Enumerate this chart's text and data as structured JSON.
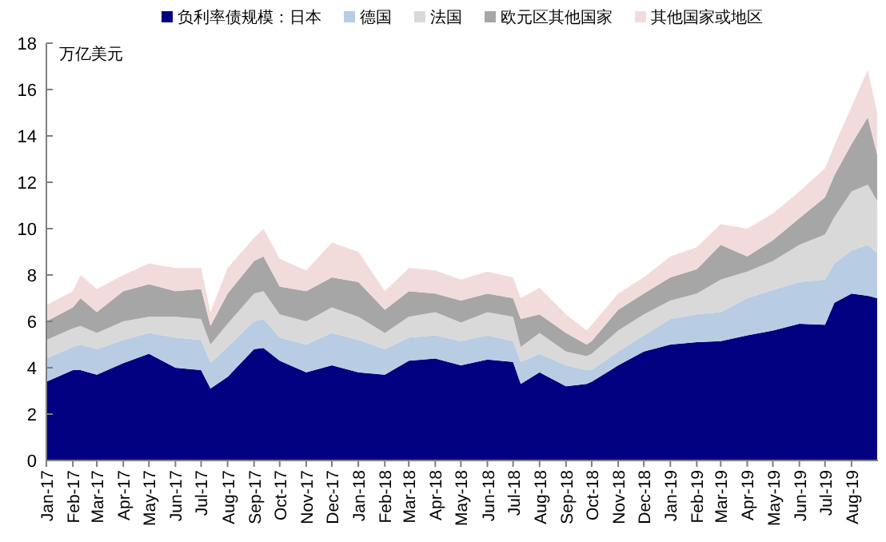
{
  "chart_data": {
    "type": "area",
    "stacked": true,
    "ylabel": "万亿美元",
    "legend": "top",
    "x": [
      "2017-01-01",
      "2017-02-01",
      "2017-02-10",
      "2017-03-01",
      "2017-04-01",
      "2017-05-01",
      "2017-06-01",
      "2017-07-01",
      "2017-07-12",
      "2017-08-01",
      "2017-09-01",
      "2017-09-12",
      "2017-10-01",
      "2017-11-01",
      "2017-12-01",
      "2018-01-01",
      "2018-02-01",
      "2018-03-01",
      "2018-04-01",
      "2018-05-01",
      "2018-06-01",
      "2018-07-01",
      "2018-07-10",
      "2018-08-01",
      "2018-09-01",
      "2018-09-25",
      "2018-10-01",
      "2018-11-01",
      "2018-12-01",
      "2019-01-01",
      "2019-02-01",
      "2019-03-01",
      "2019-04-01",
      "2019-05-01",
      "2019-06-01",
      "2019-07-01",
      "2019-07-12",
      "2019-08-01",
      "2019-08-20",
      "2019-08-31"
    ],
    "xlim": [
      "2017-01-01",
      "2019-09-01"
    ],
    "xticks": [
      {
        "value": "2017-01",
        "label": "Jan-17"
      },
      {
        "value": "2017-02",
        "label": "Feb-17"
      },
      {
        "value": "2017-03",
        "label": "Mar-17"
      },
      {
        "value": "2017-04",
        "label": "Apr-17"
      },
      {
        "value": "2017-05",
        "label": "May-17"
      },
      {
        "value": "2017-06",
        "label": "Jun-17"
      },
      {
        "value": "2017-07",
        "label": "Jul-17"
      },
      {
        "value": "2017-08",
        "label": "Aug-17"
      },
      {
        "value": "2017-09",
        "label": "Sep-17"
      },
      {
        "value": "2017-10",
        "label": "Oct-17"
      },
      {
        "value": "2017-11",
        "label": "Nov-17"
      },
      {
        "value": "2017-12",
        "label": "Dec-17"
      },
      {
        "value": "2018-01",
        "label": "Jan-18"
      },
      {
        "value": "2018-02",
        "label": "Feb-18"
      },
      {
        "value": "2018-03",
        "label": "Mar-18"
      },
      {
        "value": "2018-04",
        "label": "Apr-18"
      },
      {
        "value": "2018-05",
        "label": "May-18"
      },
      {
        "value": "2018-06",
        "label": "Jun-18"
      },
      {
        "value": "2018-07",
        "label": "Jul-18"
      },
      {
        "value": "2018-08",
        "label": "Aug-18"
      },
      {
        "value": "2018-09",
        "label": "Sep-18"
      },
      {
        "value": "2018-10",
        "label": "Oct-18"
      },
      {
        "value": "2018-11",
        "label": "Nov-18"
      },
      {
        "value": "2018-12",
        "label": "Dec-18"
      },
      {
        "value": "2019-01",
        "label": "Jan-19"
      },
      {
        "value": "2019-02",
        "label": "Feb-19"
      },
      {
        "value": "2019-03",
        "label": "Mar-19"
      },
      {
        "value": "2019-04",
        "label": "Apr-19"
      },
      {
        "value": "2019-05",
        "label": "May-19"
      },
      {
        "value": "2019-06",
        "label": "Jun-19"
      },
      {
        "value": "2019-07",
        "label": "Jul-19"
      },
      {
        "value": "2019-08",
        "label": "Aug-19"
      }
    ],
    "ylim": [
      0,
      18
    ],
    "yticks": [
      0,
      2,
      4,
      6,
      8,
      10,
      12,
      14,
      16,
      18
    ],
    "series": [
      {
        "name": "负利率债规模：日本",
        "color": "#000080",
        "values": [
          3.4,
          3.9,
          3.9,
          3.7,
          4.2,
          4.6,
          4.0,
          3.9,
          3.1,
          3.6,
          4.8,
          4.85,
          4.3,
          3.8,
          4.1,
          3.8,
          3.7,
          4.3,
          4.4,
          4.1,
          4.35,
          4.25,
          3.3,
          3.8,
          3.2,
          3.3,
          3.4,
          4.1,
          4.7,
          5.0,
          5.1,
          5.15,
          5.4,
          5.6,
          5.9,
          5.85,
          6.8,
          7.2,
          7.1,
          7.0
        ]
      },
      {
        "name": "德国",
        "color": "#b8cce4",
        "values": [
          1.0,
          1.0,
          1.1,
          1.1,
          1.0,
          0.9,
          1.3,
          1.3,
          1.1,
          1.3,
          1.2,
          1.25,
          1.0,
          1.2,
          1.4,
          1.4,
          1.1,
          1.0,
          1.0,
          1.05,
          1.05,
          0.9,
          0.95,
          0.8,
          0.9,
          0.6,
          0.5,
          0.6,
          0.7,
          1.1,
          1.2,
          1.25,
          1.6,
          1.75,
          1.8,
          1.95,
          1.7,
          1.85,
          2.2,
          1.95
        ]
      },
      {
        "name": "法国",
        "color": "#d9d9d9",
        "values": [
          0.8,
          0.8,
          0.8,
          0.7,
          0.8,
          0.7,
          0.9,
          0.9,
          0.8,
          1.0,
          1.2,
          1.2,
          1.0,
          1.0,
          1.1,
          1.0,
          0.7,
          0.9,
          1.0,
          0.8,
          1.0,
          1.05,
          0.65,
          0.9,
          0.6,
          0.6,
          0.7,
          0.9,
          0.9,
          0.8,
          0.9,
          1.4,
          1.15,
          1.25,
          1.6,
          1.95,
          2.0,
          2.55,
          2.6,
          2.25
        ]
      },
      {
        "name": "欧元区其他国家",
        "color": "#a6a6a6",
        "values": [
          0.8,
          0.9,
          1.2,
          0.9,
          1.3,
          1.4,
          1.1,
          1.3,
          0.8,
          1.3,
          1.4,
          1.5,
          1.2,
          1.3,
          1.3,
          1.5,
          1.0,
          1.1,
          0.8,
          0.95,
          0.8,
          0.8,
          1.2,
          0.8,
          0.8,
          0.5,
          0.55,
          0.9,
          0.9,
          1.0,
          1.05,
          1.5,
          0.65,
          0.9,
          1.15,
          1.6,
          1.8,
          2.05,
          2.9,
          2.0
        ]
      },
      {
        "name": "其他国家或地区",
        "color": "#f2dcdb",
        "values": [
          0.7,
          0.7,
          1.0,
          1.0,
          0.7,
          0.9,
          1.0,
          0.9,
          0.6,
          1.1,
          1.0,
          1.2,
          1.2,
          0.9,
          1.5,
          1.3,
          0.8,
          1.0,
          1.0,
          0.9,
          0.95,
          0.9,
          0.9,
          1.15,
          0.8,
          0.6,
          0.7,
          0.7,
          0.7,
          0.9,
          0.95,
          0.9,
          1.2,
          1.15,
          1.15,
          1.25,
          1.3,
          1.6,
          2.05,
          1.8
        ]
      }
    ]
  }
}
